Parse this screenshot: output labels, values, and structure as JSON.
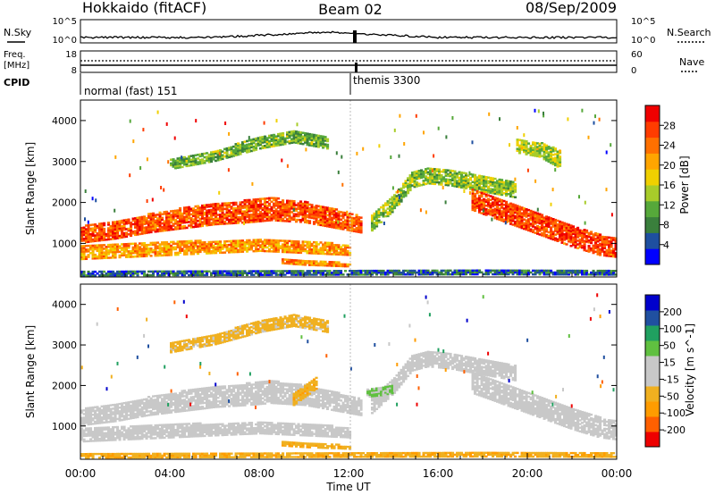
{
  "header": {
    "site": "Hokkaido (fitACF)",
    "beam": "Beam 02",
    "date": "08/Sep/2009"
  },
  "nsky_panel": {
    "left_label": "N.Sky",
    "right_label": "N.Search",
    "left_ticks": [
      "10^5",
      "10^0"
    ],
    "right_ticks": [
      "10^5",
      "10^0"
    ]
  },
  "freq_panel": {
    "left_label_line1": "Freq.",
    "left_label_line2": "[MHz]",
    "right_label": "Nave",
    "left_ticks": [
      "18",
      "8"
    ],
    "right_ticks": [
      "60",
      "0"
    ]
  },
  "cpid_panel": {
    "label": "CPID",
    "segments": [
      {
        "name": "normal (fast) 151",
        "start_hour": 0,
        "end_hour": 12.3
      },
      {
        "name": "themis 3300",
        "start_hour": 12.3,
        "end_hour": 12.5
      }
    ]
  },
  "colors": {
    "power": [
      "#0000ff",
      "#1e4fa0",
      "#3a7f3c",
      "#56a83a",
      "#a8cc2a",
      "#f0d000",
      "#ffa500",
      "#ff7000",
      "#ff3c00",
      "#f00000"
    ],
    "velocity": [
      "#ee0000",
      "#ff6000",
      "#ff9c00",
      "#f0b020",
      "#c8c8c8",
      "#c8c8c8",
      "#60c040",
      "#20a060",
      "#2050a0",
      "#0000cc"
    ]
  },
  "chart_data": [
    {
      "type": "heatmap",
      "name": "power",
      "ylabel": "Slant Range [km]",
      "ylim": [
        180,
        4500
      ],
      "xlim": [
        0,
        24
      ],
      "yticks": [
        "1000",
        "2000",
        "3000",
        "4000"
      ],
      "colorbar": {
        "label": "Power [dB]",
        "ticks": [
          "4",
          "8",
          "12",
          "16",
          "20",
          "24",
          "28"
        ]
      },
      "bands": [
        {
          "t": [
            0,
            1.5,
            3,
            4.5,
            6,
            7.5,
            8.5,
            10,
            11.5,
            12.5
          ],
          "lo": [
            1000,
            1100,
            1250,
            1350,
            1450,
            1500,
            1550,
            1500,
            1350,
            1250
          ],
          "hi": [
            1400,
            1550,
            1700,
            1850,
            1950,
            2050,
            2100,
            2000,
            1800,
            1650
          ],
          "level": 0.85
        },
        {
          "t": [
            0,
            2,
            4,
            6,
            8,
            10,
            12
          ],
          "lo": [
            600,
            650,
            700,
            750,
            800,
            750,
            700
          ],
          "hi": [
            950,
            1000,
            1050,
            1050,
            1100,
            1050,
            950
          ],
          "level": 0.7
        },
        {
          "t": [
            9,
            9.5,
            10,
            10.5,
            11,
            11.5,
            12
          ],
          "lo": [
            500,
            480,
            460,
            450,
            440,
            430,
            420
          ],
          "hi": [
            600,
            580,
            560,
            560,
            540,
            520,
            500
          ],
          "level": 0.75
        },
        {
          "t": [
            13,
            14,
            14.8,
            15.5,
            16.5,
            17.5,
            18.5,
            19.5
          ],
          "lo": [
            1300,
            1800,
            2350,
            2450,
            2400,
            2300,
            2200,
            2100
          ],
          "hi": [
            1700,
            2200,
            2750,
            2850,
            2800,
            2700,
            2600,
            2500
          ],
          "level": 0.4
        },
        {
          "t": [
            17.5,
            19,
            20.5,
            22,
            23.2,
            24
          ],
          "lo": [
            1800,
            1500,
            1200,
            900,
            700,
            650
          ],
          "hi": [
            2300,
            2000,
            1700,
            1400,
            1200,
            1100
          ],
          "level": 0.88
        },
        {
          "t": [
            4,
            6,
            8,
            9.5,
            11
          ],
          "lo": [
            2800,
            3000,
            3300,
            3450,
            3300
          ],
          "hi": [
            3050,
            3250,
            3600,
            3750,
            3600
          ],
          "level": 0.35
        },
        {
          "t": [
            19.5,
            20.5,
            21.5
          ],
          "lo": [
            3200,
            3100,
            2800
          ],
          "hi": [
            3550,
            3450,
            3250
          ],
          "level": 0.45
        },
        {
          "t": [
            0,
            6,
            12,
            18,
            24
          ],
          "lo": [
            200,
            210,
            220,
            230,
            220
          ],
          "hi": [
            320,
            330,
            330,
            340,
            320
          ],
          "level": 0.15
        }
      ]
    },
    {
      "type": "heatmap",
      "name": "velocity",
      "ylabel": "Slant Range [km]",
      "xlabel": "Time UT",
      "ylim": [
        180,
        4500
      ],
      "xlim": [
        0,
        24
      ],
      "yticks": [
        "1000",
        "2000",
        "3000",
        "4000"
      ],
      "xticks": [
        "00:00",
        "04:00",
        "08:00",
        "12:00",
        "16:00",
        "20:00",
        "00:00"
      ],
      "colorbar": {
        "label": "Velocity [m s^-1]",
        "ticks": [
          "200",
          "100",
          "50",
          "15",
          "-15",
          "-50",
          "-100",
          "-200"
        ]
      },
      "bands": [
        {
          "t": [
            0,
            1.5,
            3,
            4.5,
            6,
            7.5,
            8.5,
            10,
            11.5,
            12.5
          ],
          "lo": [
            1000,
            1100,
            1250,
            1350,
            1450,
            1500,
            1550,
            1500,
            1350,
            1250
          ],
          "hi": [
            1400,
            1550,
            1700,
            1850,
            1950,
            2050,
            2100,
            2000,
            1800,
            1650
          ],
          "level": 0.45
        },
        {
          "t": [
            0,
            2,
            4,
            6,
            8,
            10,
            12
          ],
          "lo": [
            600,
            650,
            700,
            750,
            800,
            750,
            700
          ],
          "hi": [
            950,
            1000,
            1050,
            1050,
            1100,
            1050,
            950
          ],
          "level": 0.45
        },
        {
          "t": [
            9,
            9.5,
            10,
            10.5,
            11,
            11.5,
            12
          ],
          "lo": [
            500,
            480,
            460,
            450,
            440,
            430,
            420
          ],
          "hi": [
            600,
            580,
            560,
            560,
            540,
            520,
            500
          ],
          "level": 0.3
        },
        {
          "t": [
            13,
            14,
            14.8,
            15.5,
            16.5,
            17.5,
            18.5,
            19.5
          ],
          "lo": [
            1300,
            1800,
            2350,
            2450,
            2400,
            2300,
            2200,
            2100
          ],
          "hi": [
            1700,
            2200,
            2750,
            2850,
            2800,
            2700,
            2600,
            2500
          ],
          "level": 0.45
        },
        {
          "t": [
            17.5,
            19,
            20.5,
            22,
            23.2,
            24
          ],
          "lo": [
            1800,
            1500,
            1200,
            900,
            700,
            650
          ],
          "hi": [
            2300,
            2000,
            1700,
            1400,
            1200,
            1100
          ],
          "level": 0.45
        },
        {
          "t": [
            4,
            6,
            8,
            9.5,
            11
          ],
          "lo": [
            2800,
            3000,
            3300,
            3450,
            3300
          ],
          "hi": [
            3050,
            3250,
            3600,
            3750,
            3600
          ],
          "level": 0.35
        },
        {
          "t": [
            9.5,
            10,
            10.5
          ],
          "lo": [
            1500,
            1700,
            1900
          ],
          "hi": [
            1800,
            2000,
            2200
          ],
          "level": 0.32
        },
        {
          "t": [
            12.8,
            13.5,
            14
          ],
          "lo": [
            1700,
            1750,
            1800
          ],
          "hi": [
            1900,
            1950,
            2000
          ],
          "level": 0.62
        },
        {
          "t": [
            0,
            6,
            12,
            18,
            24
          ],
          "lo": [
            200,
            210,
            220,
            230,
            220
          ],
          "hi": [
            320,
            330,
            330,
            340,
            320
          ],
          "level": 0.3
        }
      ]
    }
  ]
}
